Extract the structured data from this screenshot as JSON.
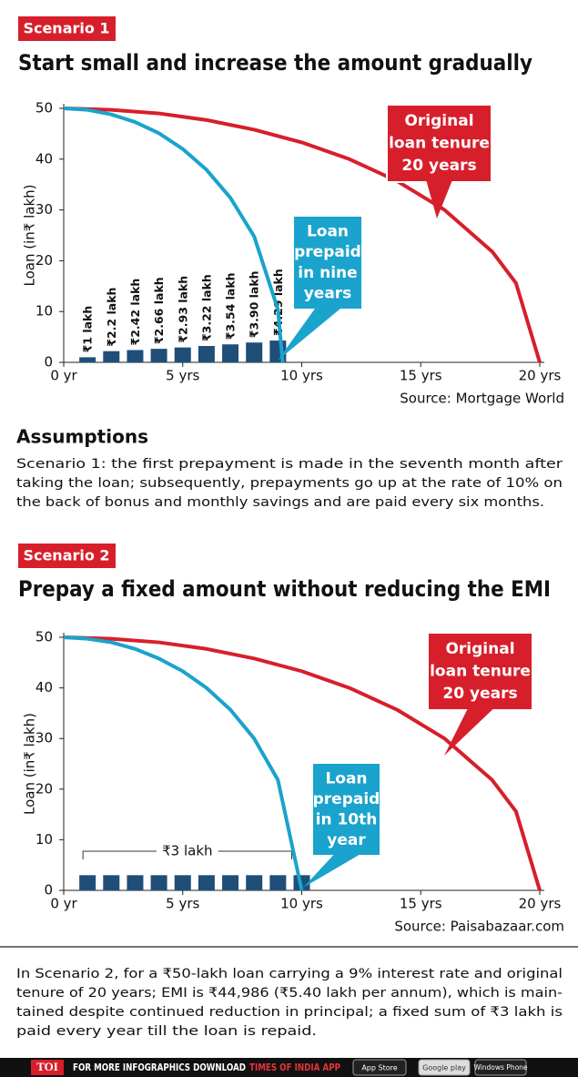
{
  "chart_data": [
    {
      "type": "line",
      "badge": "Scenario 1",
      "title": "Start small and increase the amount gradually",
      "y_label": "Loan (in₹ lakh)",
      "source": "Source: Mortgage World",
      "xlim": [
        0,
        20
      ],
      "xticks": [
        {
          "value": 0,
          "label": "0 yr"
        },
        {
          "value": 5,
          "label": "5 yrs"
        },
        {
          "value": 10,
          "label": "10 yrs"
        },
        {
          "value": 15,
          "label": "15 yrs"
        },
        {
          "value": 20,
          "label": "20 yrs"
        }
      ],
      "ylim": [
        0,
        50
      ],
      "yticks": [
        0,
        10,
        20,
        30,
        40,
        50
      ],
      "series": [
        {
          "color": "#d71f2b",
          "annotation": [
            "Original",
            "loan tenure",
            "20 years"
          ],
          "x": [
            0,
            2,
            4,
            6,
            8,
            10,
            12,
            14,
            16,
            18,
            19,
            20
          ],
          "values": [
            50,
            49.7,
            49.0,
            47.7,
            45.8,
            43.3,
            40.0,
            35.7,
            30.0,
            21.8,
            15.6,
            0
          ]
        },
        {
          "color": "#1aa3cc",
          "annotation": [
            "Loan",
            "prepaid",
            "in nine",
            "years"
          ],
          "x": [
            0,
            1,
            2,
            3,
            4,
            5,
            6,
            7,
            8,
            9,
            9.2
          ],
          "values": [
            50,
            49.7,
            48.8,
            47.3,
            45.1,
            42.0,
            37.9,
            32.4,
            24.8,
            10.4,
            0
          ]
        }
      ],
      "bars": {
        "color": "#1f4e79",
        "x": [
          1,
          2,
          3,
          4,
          5,
          6,
          7,
          8,
          9
        ],
        "values": [
          1,
          2.2,
          2.42,
          2.66,
          2.93,
          3.22,
          3.54,
          3.9,
          4.29
        ],
        "value_labels": [
          "₹1 lakh",
          "₹2.2 lakh",
          "₹2.42 lakh",
          "₹2.66 lakh",
          "₹2.93 lakh",
          "₹3.22 lakh",
          "₹3.54 lakh",
          "₹3.90 lakh",
          "₹4.29 lakh"
        ]
      }
    },
    {
      "type": "line",
      "badge": "Scenario 2",
      "title": "Prepay a fixed amount without reducing the EMI",
      "y_label": "Loan (in₹ lakh)",
      "source": "Source: Paisabazaar.com",
      "xlim": [
        0,
        20
      ],
      "xticks": [
        {
          "value": 0,
          "label": "0 yr"
        },
        {
          "value": 5,
          "label": "5 yrs"
        },
        {
          "value": 10,
          "label": "10 yrs"
        },
        {
          "value": 15,
          "label": "15 yrs"
        },
        {
          "value": 20,
          "label": "20 yrs"
        }
      ],
      "ylim": [
        0,
        50
      ],
      "yticks": [
        0,
        10,
        20,
        30,
        40,
        50
      ],
      "series": [
        {
          "color": "#d71f2b",
          "annotation": [
            "Original",
            "loan tenure",
            "20 years"
          ],
          "x": [
            0,
            2,
            4,
            6,
            8,
            10,
            12,
            14,
            16,
            18,
            19,
            20
          ],
          "values": [
            50,
            49.7,
            49.0,
            47.7,
            45.8,
            43.3,
            40.0,
            35.7,
            30.0,
            21.8,
            15.6,
            0
          ]
        },
        {
          "color": "#1aa3cc",
          "annotation": [
            "Loan",
            "prepaid",
            "in 10th",
            "year"
          ],
          "x": [
            0,
            1,
            2,
            3,
            4,
            5,
            6,
            7,
            8,
            9,
            10
          ],
          "values": [
            50,
            49.7,
            49.0,
            47.7,
            45.8,
            43.3,
            40.0,
            35.7,
            30.0,
            21.8,
            0
          ]
        }
      ],
      "bars": {
        "color": "#1f4e79",
        "x": [
          1,
          2,
          3,
          4,
          5,
          6,
          7,
          8,
          9,
          10
        ],
        "values": [
          3,
          3,
          3,
          3,
          3,
          3,
          3,
          3,
          3,
          3
        ],
        "group_label": "₹3 lakh"
      }
    }
  ],
  "assumptions": {
    "heading": "Assumptions",
    "lines": [
      "Scenario 1: the first prepayment is made in the seventh month after",
      "taking the loan; subsequently, prepayments go up at the rate of 10% on",
      "the back of bonus and monthly savings and are paid every six months."
    ]
  },
  "note": {
    "lines": [
      "In Scenario 2, for a ₹50-lakh loan carrying a 9% interest rate and original",
      "tenure of 20 years; EMI is ₹44,986 (₹5.40 lakh per annum), which is main-",
      "tained despite continued reduction in principal; a fixed sum of ₹3 lakh is",
      "paid every year till the loan is repaid."
    ]
  },
  "footer": {
    "logo": "TOI",
    "text": "FOR MORE INFOGRAPHICS DOWNLOAD",
    "app": "TIMES OF INDIA APP",
    "badges": [
      "App Store",
      "Google play",
      "Windows Phone"
    ]
  }
}
